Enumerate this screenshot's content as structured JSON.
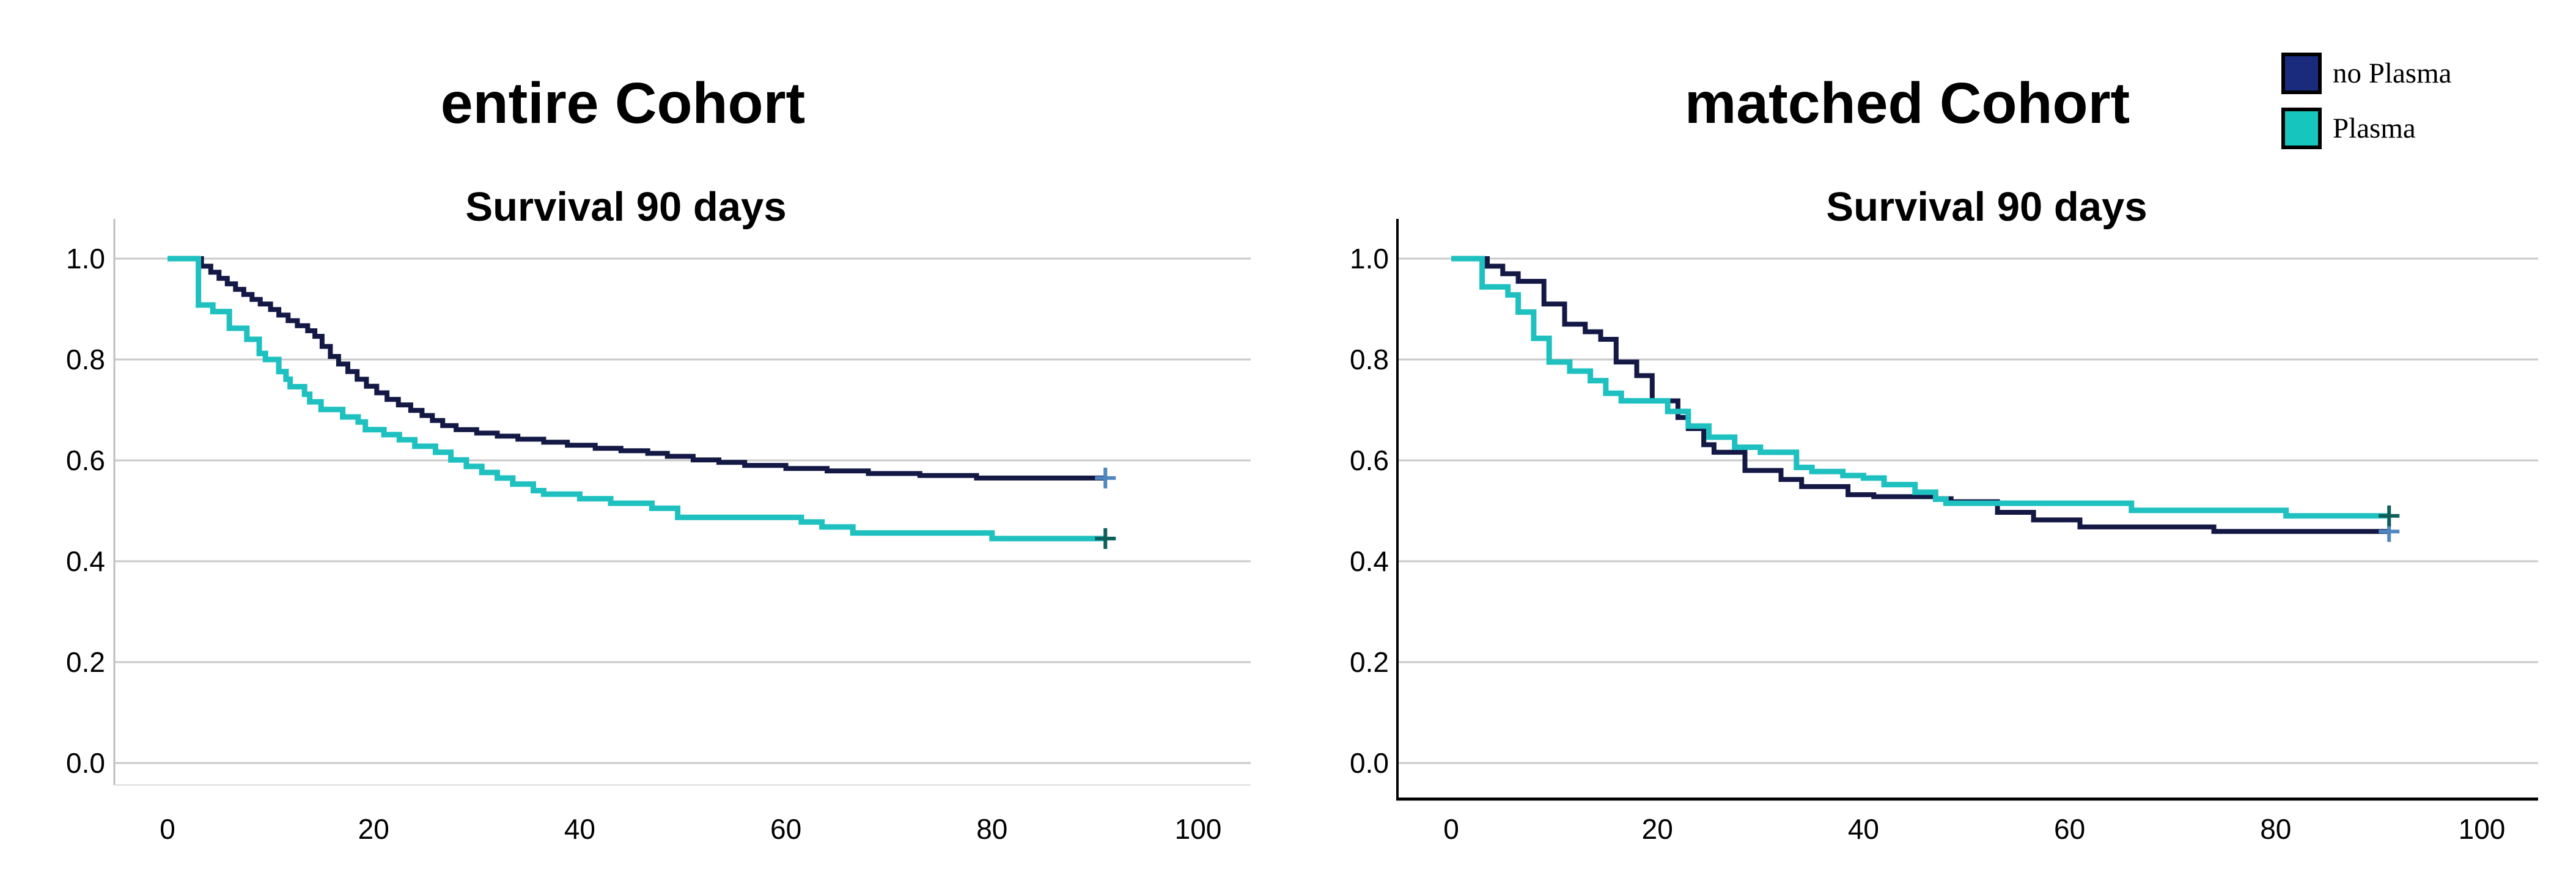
{
  "figure": {
    "background": "#ffffff",
    "panels": [
      {
        "panel_title": "entire Cohort"
      },
      {
        "panel_title": "matched Cohort"
      }
    ]
  },
  "legend": {
    "position": "top-right",
    "items": [
      {
        "label": "no Plasma",
        "color": "#1A2B7E"
      },
      {
        "label": "Plasma",
        "color": "#16C6BE"
      }
    ]
  },
  "chart_data": [
    {
      "type": "line",
      "subtype": "kaplan-meier-step",
      "panel_title": "entire Cohort",
      "title": "Survival 90 days",
      "xlabel": "",
      "ylabel": "",
      "xlim": [
        -5,
        105
      ],
      "ylim": [
        0.0,
        1.08
      ],
      "grid": true,
      "axis_style": "gray",
      "x_ticks": [
        0,
        20,
        40,
        60,
        80,
        100
      ],
      "x_tick_labels": [
        "0",
        "20",
        "40",
        "60",
        "80",
        "100"
      ],
      "y_ticks": [
        1.0,
        0.8,
        0.6,
        0.4,
        0.2,
        0.0
      ],
      "y_tick_labels": [
        "1.0",
        "0.8",
        "0.6",
        "0.4",
        "0.2",
        "0.0"
      ],
      "series": [
        {
          "name": "no Plasma",
          "color": "#131845",
          "censor_color": "#4E86C0",
          "censor_x": 91,
          "points": [
            [
              0,
              1.0
            ],
            [
              3.3,
              0.985
            ],
            [
              4.2,
              0.973
            ],
            [
              5,
              0.961
            ],
            [
              5.8,
              0.95
            ],
            [
              6.6,
              0.939
            ],
            [
              7.4,
              0.929
            ],
            [
              8.2,
              0.919
            ],
            [
              9,
              0.91
            ],
            [
              10,
              0.899
            ],
            [
              10.8,
              0.888
            ],
            [
              11.7,
              0.877
            ],
            [
              12.6,
              0.867
            ],
            [
              13.6,
              0.857
            ],
            [
              14.3,
              0.846
            ],
            [
              15,
              0.826
            ],
            [
              15.8,
              0.806
            ],
            [
              16.6,
              0.791
            ],
            [
              17.5,
              0.776
            ],
            [
              18.4,
              0.761
            ],
            [
              19.3,
              0.747
            ],
            [
              20.3,
              0.734
            ],
            [
              21.3,
              0.721
            ],
            [
              22.4,
              0.71
            ],
            [
              23.6,
              0.699
            ],
            [
              24.7,
              0.689
            ],
            [
              25.7,
              0.679
            ],
            [
              26.7,
              0.669
            ],
            [
              28,
              0.661
            ],
            [
              30,
              0.654
            ],
            [
              32,
              0.648
            ],
            [
              34,
              0.642
            ],
            [
              36.5,
              0.636
            ],
            [
              38.8,
              0.63
            ],
            [
              41.5,
              0.624
            ],
            [
              44,
              0.619
            ],
            [
              46.6,
              0.614
            ],
            [
              48.5,
              0.608
            ],
            [
              51,
              0.601
            ],
            [
              53.5,
              0.596
            ],
            [
              56,
              0.59
            ],
            [
              60,
              0.584
            ],
            [
              64,
              0.579
            ],
            [
              68,
              0.574
            ],
            [
              73,
              0.57
            ],
            [
              78.5,
              0.565
            ],
            [
              91,
              0.565
            ]
          ]
        },
        {
          "name": "Plasma",
          "color": "#1FC0C0",
          "censor_color": "#0E5F5A",
          "censor_x": 91,
          "points": [
            [
              0,
              1.0
            ],
            [
              3,
              0.908
            ],
            [
              4.4,
              0.895
            ],
            [
              6,
              0.862
            ],
            [
              7.7,
              0.84
            ],
            [
              8.9,
              0.812
            ],
            [
              9.5,
              0.8
            ],
            [
              10.8,
              0.776
            ],
            [
              11.5,
              0.761
            ],
            [
              11.9,
              0.746
            ],
            [
              13.3,
              0.731
            ],
            [
              13.8,
              0.716
            ],
            [
              14.9,
              0.701
            ],
            [
              17,
              0.686
            ],
            [
              18.5,
              0.676
            ],
            [
              19.2,
              0.661
            ],
            [
              21,
              0.651
            ],
            [
              22.5,
              0.641
            ],
            [
              24,
              0.628
            ],
            [
              26,
              0.616
            ],
            [
              27.5,
              0.601
            ],
            [
              29,
              0.588
            ],
            [
              30.5,
              0.576
            ],
            [
              32,
              0.565
            ],
            [
              33.5,
              0.553
            ],
            [
              35.5,
              0.54
            ],
            [
              36.5,
              0.533
            ],
            [
              40,
              0.524
            ],
            [
              43,
              0.515
            ],
            [
              47,
              0.505
            ],
            [
              49.5,
              0.487
            ],
            [
              61.5,
              0.478
            ],
            [
              63.5,
              0.468
            ],
            [
              66.5,
              0.456
            ],
            [
              80,
              0.445
            ],
            [
              91,
              0.445
            ]
          ]
        }
      ]
    },
    {
      "type": "line",
      "subtype": "kaplan-meier-step",
      "panel_title": "matched Cohort",
      "title": "Survival 90 days",
      "xlabel": "",
      "ylabel": "",
      "xlim": [
        -5,
        105
      ],
      "ylim": [
        0.0,
        1.08
      ],
      "grid": true,
      "axis_style": "black-frame",
      "x_ticks": [
        0,
        20,
        40,
        60,
        80,
        100
      ],
      "x_tick_labels": [
        "0",
        "20",
        "40",
        "60",
        "80",
        "100"
      ],
      "y_ticks": [
        1.0,
        0.8,
        0.6,
        0.4,
        0.2,
        0.0
      ],
      "y_tick_labels": [
        "1.0",
        "0.8",
        "0.6",
        "0.4",
        "0.2",
        "0.0"
      ],
      "series": [
        {
          "name": "no Plasma",
          "color": "#131845",
          "censor_color": "#4E86C0",
          "censor_x": 91,
          "points": [
            [
              0,
              1.0
            ],
            [
              3.5,
              0.985
            ],
            [
              5,
              0.97
            ],
            [
              6.5,
              0.955
            ],
            [
              9,
              0.91
            ],
            [
              11,
              0.87
            ],
            [
              13,
              0.855
            ],
            [
              14.5,
              0.84
            ],
            [
              16,
              0.795
            ],
            [
              18,
              0.768
            ],
            [
              19.5,
              0.718
            ],
            [
              22,
              0.685
            ],
            [
              23,
              0.663
            ],
            [
              24.5,
              0.631
            ],
            [
              25.5,
              0.616
            ],
            [
              28.5,
              0.58
            ],
            [
              32,
              0.562
            ],
            [
              34,
              0.548
            ],
            [
              38.5,
              0.532
            ],
            [
              41,
              0.528
            ],
            [
              47,
              0.524
            ],
            [
              48.5,
              0.518
            ],
            [
              53,
              0.497
            ],
            [
              56.5,
              0.482
            ],
            [
              61,
              0.468
            ],
            [
              74,
              0.459
            ],
            [
              91,
              0.459
            ]
          ]
        },
        {
          "name": "Plasma",
          "color": "#1FC0C0",
          "censor_color": "#0E5F5A",
          "censor_x": 91,
          "points": [
            [
              0,
              1.0
            ],
            [
              3,
              0.944
            ],
            [
              5.5,
              0.928
            ],
            [
              6.5,
              0.894
            ],
            [
              8,
              0.842
            ],
            [
              9.5,
              0.795
            ],
            [
              11.5,
              0.777
            ],
            [
              13.5,
              0.758
            ],
            [
              15,
              0.733
            ],
            [
              16.5,
              0.718
            ],
            [
              21,
              0.697
            ],
            [
              23,
              0.668
            ],
            [
              25,
              0.646
            ],
            [
              27.5,
              0.626
            ],
            [
              30,
              0.616
            ],
            [
              33.5,
              0.586
            ],
            [
              35,
              0.578
            ],
            [
              38,
              0.57
            ],
            [
              40,
              0.565
            ],
            [
              42,
              0.552
            ],
            [
              45,
              0.537
            ],
            [
              47,
              0.523
            ],
            [
              48,
              0.515
            ],
            [
              66,
              0.501
            ],
            [
              81,
              0.49
            ],
            [
              91,
              0.49
            ]
          ]
        }
      ]
    }
  ]
}
